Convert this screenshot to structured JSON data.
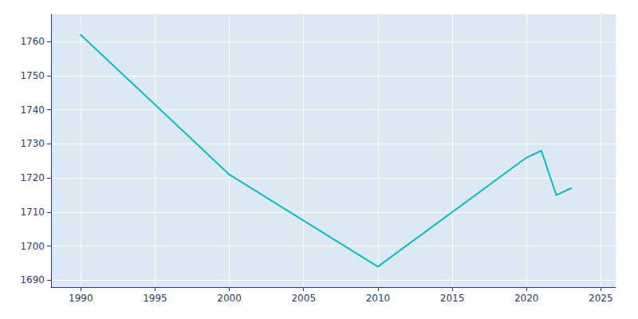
{
  "chart_data": {
    "type": "line",
    "x": [
      1990,
      2000,
      2010,
      2020,
      2021,
      2022,
      2023
    ],
    "values": [
      1762,
      1721,
      1694,
      1726,
      1728,
      1715,
      1717
    ],
    "color": "#00BFBF",
    "xlim": [
      1988,
      2026
    ],
    "ylim": [
      1688,
      1768
    ],
    "xticks": [
      1990,
      1995,
      2000,
      2005,
      2010,
      2015,
      2020,
      2025
    ],
    "yticks": [
      1690,
      1700,
      1710,
      1720,
      1730,
      1740,
      1750,
      1760
    ],
    "grid": true
  }
}
